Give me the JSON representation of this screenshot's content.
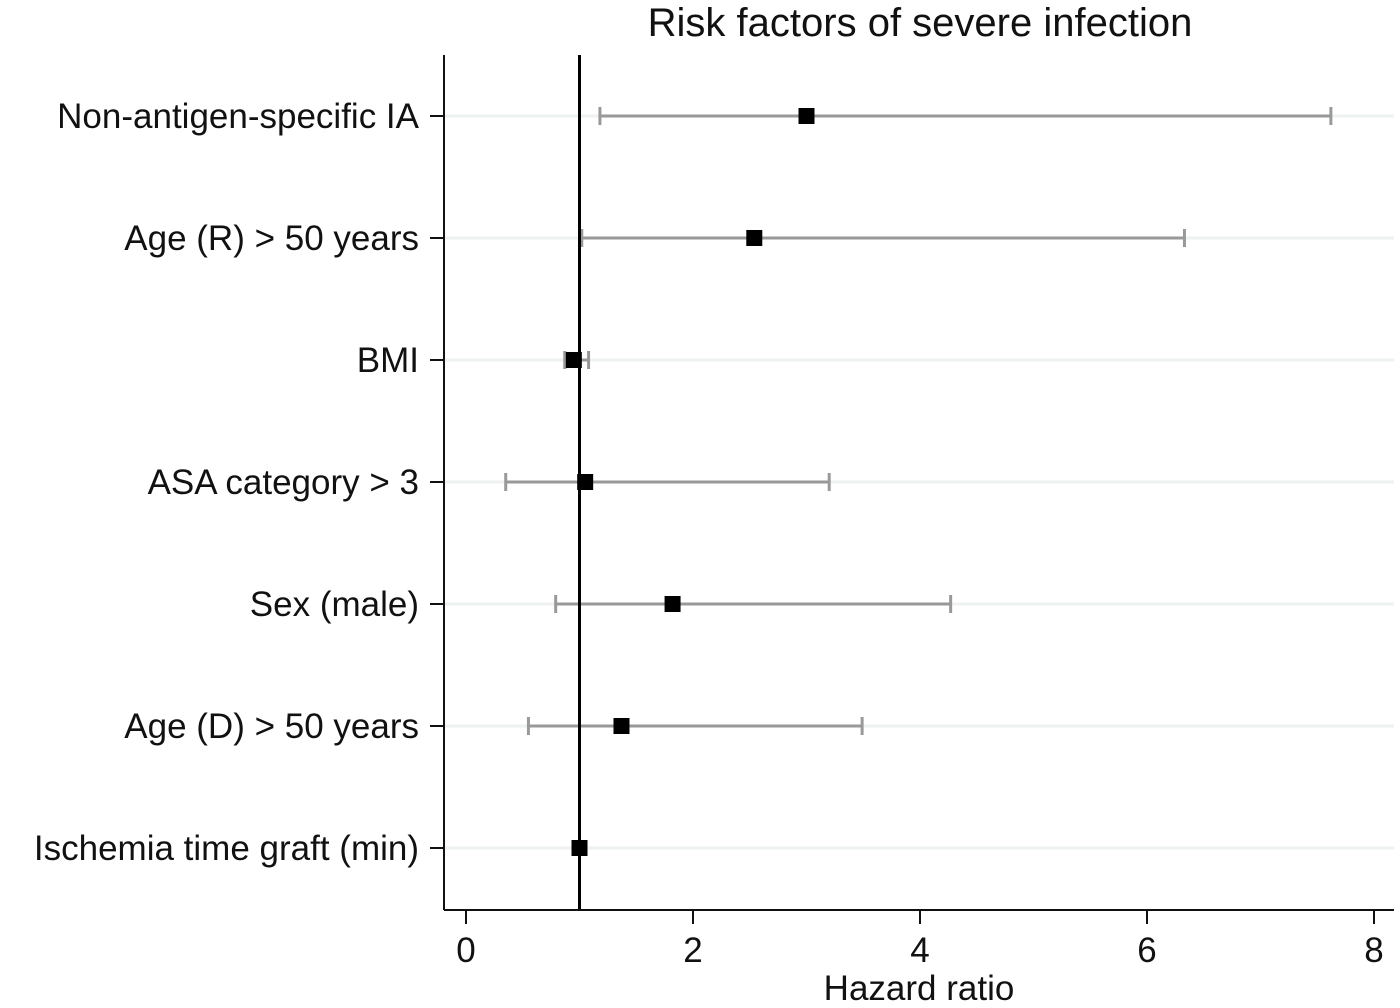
{
  "chart_data": {
    "type": "forest",
    "title": "Risk factors of severe infection",
    "xlabel": "Hazard ratio",
    "ylabel": "",
    "xlim": [
      0,
      8
    ],
    "xticks": [
      0,
      2,
      4,
      6,
      8
    ],
    "reference_line": 1,
    "grid": "horizontal",
    "categories": [
      "Non-antigen-specific IA",
      "Age (R) > 50 years",
      "BMI",
      "ASA category > 3",
      "Sex (male)",
      "Age (D) > 50 years",
      "Ischemia time graft (min)"
    ],
    "series": [
      {
        "name": "Hazard ratio",
        "values": [
          3.0,
          2.54,
          0.95,
          1.05,
          1.82,
          1.37,
          1.0
        ],
        "ci_lower": [
          1.18,
          1.02,
          0.87,
          0.35,
          0.79,
          0.55,
          0.99
        ],
        "ci_upper": [
          7.62,
          6.33,
          1.08,
          3.2,
          4.27,
          3.49,
          1.01
        ]
      }
    ],
    "colors": {
      "marker": "#000000",
      "ci": "#999999",
      "grid": "#eef2f2",
      "reference": "#000000",
      "axis": "#111111"
    }
  }
}
